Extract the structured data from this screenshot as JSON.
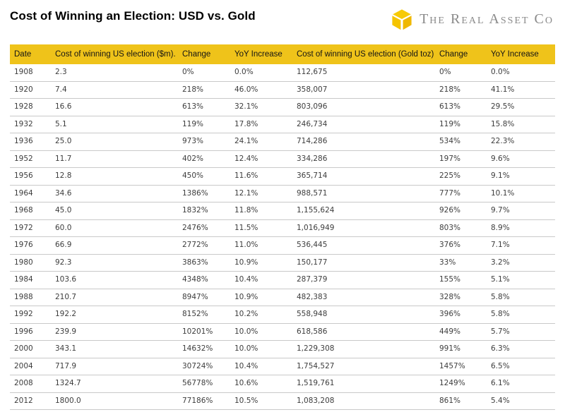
{
  "header": {
    "title": "Cost of Winning an Election: USD vs. Gold",
    "logo_text": "The Real Asset Co",
    "logo_gold_color": "#f5c400",
    "logo_text_color": "#8a8a8a"
  },
  "table": {
    "header_bg_color": "#efc31a",
    "row_divider_color": "#c9c9c9",
    "columns": [
      "Date",
      "Cost of winning US election ($m).",
      "Change",
      "YoY Increase",
      "Cost of winning US election (Gold toz)",
      "Change",
      "YoY Increase"
    ],
    "rows": [
      [
        "1908",
        "2.3",
        "0%",
        "0.0%",
        "112,675",
        "0%",
        "0.0%"
      ],
      [
        "1920",
        "7.4",
        "218%",
        "46.0%",
        "358,007",
        "218%",
        "41.1%"
      ],
      [
        "1928",
        "16.6",
        "613%",
        "32.1%",
        "803,096",
        "613%",
        "29.5%"
      ],
      [
        "1932",
        "5.1",
        "119%",
        "17.8%",
        "246,734",
        "119%",
        "15.8%"
      ],
      [
        "1936",
        "25.0",
        "973%",
        "24.1%",
        "714,286",
        "534%",
        "22.3%"
      ],
      [
        "1952",
        "11.7",
        "402%",
        "12.4%",
        "334,286",
        "197%",
        "9.6%"
      ],
      [
        "1956",
        "12.8",
        "450%",
        "11.6%",
        "365,714",
        "225%",
        "9.1%"
      ],
      [
        "1964",
        "34.6",
        "1386%",
        "12.1%",
        "988,571",
        "777%",
        "10.1%"
      ],
      [
        "1968",
        "45.0",
        "1832%",
        "11.8%",
        "1,155,624",
        "926%",
        "9.7%"
      ],
      [
        "1972",
        "60.0",
        "2476%",
        "11.5%",
        "1,016,949",
        "803%",
        "8.9%"
      ],
      [
        "1976",
        "66.9",
        "2772%",
        "11.0%",
        "536,445",
        "376%",
        "7.1%"
      ],
      [
        "1980",
        "92.3",
        "3863%",
        "10.9%",
        "150,177",
        "33%",
        "3.2%"
      ],
      [
        "1984",
        "103.6",
        "4348%",
        "10.4%",
        "287,379",
        "155%",
        "5.1%"
      ],
      [
        "1988",
        "210.7",
        "8947%",
        "10.9%",
        "482,383",
        "328%",
        "5.8%"
      ],
      [
        "1992",
        "192.2",
        "8152%",
        "10.2%",
        "558,948",
        "396%",
        "5.8%"
      ],
      [
        "1996",
        "239.9",
        "10201%",
        "10.0%",
        "618,586",
        "449%",
        "5.7%"
      ],
      [
        "2000",
        "343.1",
        "14632%",
        "10.0%",
        "1,229,308",
        "991%",
        "6.3%"
      ],
      [
        "2004",
        "717.9",
        "30724%",
        "10.4%",
        "1,754,527",
        "1457%",
        "6.5%"
      ],
      [
        "2008",
        "1324.7",
        "56778%",
        "10.6%",
        "1,519,761",
        "1249%",
        "6.1%"
      ],
      [
        "2012",
        "1800.0",
        "77186%",
        "10.5%",
        "1,083,208",
        "861%",
        "5.4%"
      ]
    ]
  },
  "chart_data": {
    "type": "table",
    "title": "Cost of Winning an Election: USD vs. Gold",
    "columns": [
      "Date",
      "Cost of winning US election ($m).",
      "Change",
      "YoY Increase",
      "Cost of winning US election (Gold toz)",
      "Change",
      "YoY Increase"
    ],
    "years": [
      1908,
      1920,
      1928,
      1932,
      1936,
      1952,
      1956,
      1964,
      1968,
      1972,
      1976,
      1980,
      1984,
      1988,
      1992,
      1996,
      2000,
      2004,
      2008,
      2012
    ],
    "series": [
      {
        "name": "Cost of winning US election ($m)",
        "values": [
          2.3,
          7.4,
          16.6,
          5.1,
          25.0,
          11.7,
          12.8,
          34.6,
          45.0,
          60.0,
          66.9,
          92.3,
          103.6,
          210.7,
          192.2,
          239.9,
          343.1,
          717.9,
          1324.7,
          1800.0
        ]
      },
      {
        "name": "USD Change %",
        "values": [
          0,
          218,
          613,
          119,
          973,
          402,
          450,
          1386,
          1832,
          2476,
          2772,
          3863,
          4348,
          8947,
          8152,
          10201,
          14632,
          30724,
          56778,
          77186
        ]
      },
      {
        "name": "USD YoY Increase %",
        "values": [
          0.0,
          46.0,
          32.1,
          17.8,
          24.1,
          12.4,
          11.6,
          12.1,
          11.8,
          11.5,
          11.0,
          10.9,
          10.4,
          10.9,
          10.2,
          10.0,
          10.0,
          10.4,
          10.6,
          10.5
        ]
      },
      {
        "name": "Cost of winning US election (Gold toz)",
        "values": [
          112675,
          358007,
          803096,
          246734,
          714286,
          334286,
          365714,
          988571,
          1155624,
          1016949,
          536445,
          150177,
          287379,
          482383,
          558948,
          618586,
          1229308,
          1754527,
          1519761,
          1083208
        ]
      },
      {
        "name": "Gold Change %",
        "values": [
          0,
          218,
          613,
          119,
          534,
          197,
          225,
          777,
          926,
          803,
          376,
          33,
          155,
          328,
          396,
          449,
          991,
          1457,
          1249,
          861
        ]
      },
      {
        "name": "Gold YoY Increase %",
        "values": [
          0.0,
          41.1,
          29.5,
          15.8,
          22.3,
          9.6,
          9.1,
          10.1,
          9.7,
          8.9,
          7.1,
          3.2,
          5.1,
          5.8,
          5.8,
          5.7,
          6.3,
          6.5,
          6.1,
          5.4
        ]
      }
    ]
  }
}
